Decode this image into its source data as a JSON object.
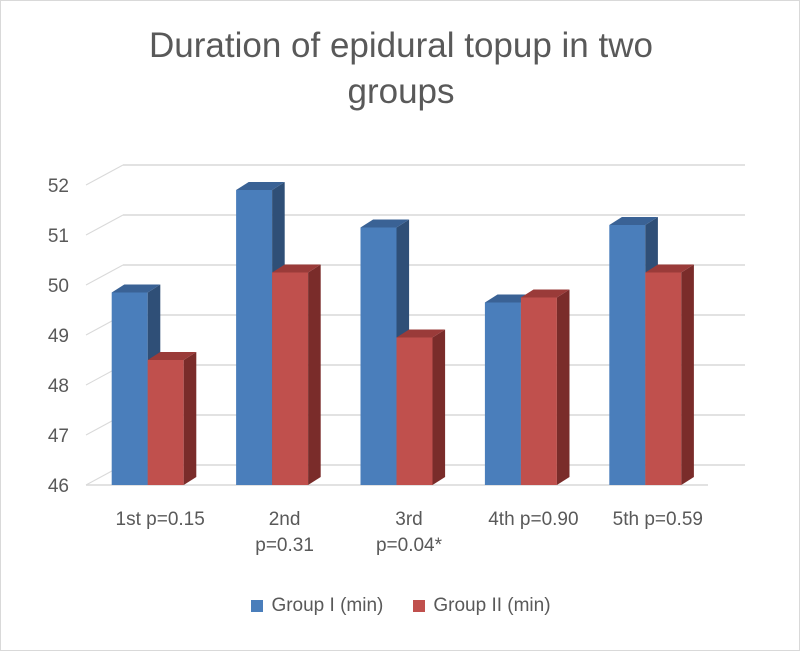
{
  "chart_data": {
    "type": "bar",
    "title": "Duration of epidural topup in two groups",
    "categories": [
      "1st  p=0.15",
      "2nd p=0.31",
      "3rd p=0.04*",
      "4th p=0.90",
      "5th p=0.59"
    ],
    "category_lines": [
      [
        "1st  p=0.15"
      ],
      [
        "2nd",
        "p=0.31"
      ],
      [
        "3rd",
        "p=0.04*"
      ],
      [
        "4th p=0.90"
      ],
      [
        "5th p=0.59"
      ]
    ],
    "series": [
      {
        "name": "Group I (min)",
        "color": "#4a7ebb",
        "side_color": "#2f4f77",
        "top_color": "#3a6295",
        "values": [
          49.85,
          51.9,
          51.15,
          49.65,
          51.2
        ]
      },
      {
        "name": "Group II (min)",
        "color": "#c0504d",
        "side_color": "#7a2c2a",
        "top_color": "#9a3b39",
        "values": [
          48.5,
          50.25,
          48.95,
          49.75,
          50.25
        ]
      }
    ],
    "ylim": [
      46,
      52
    ],
    "yticks": [
      46,
      47,
      48,
      49,
      50,
      51,
      52
    ],
    "grid": true,
    "legend_position": "bottom",
    "three_d": true
  }
}
